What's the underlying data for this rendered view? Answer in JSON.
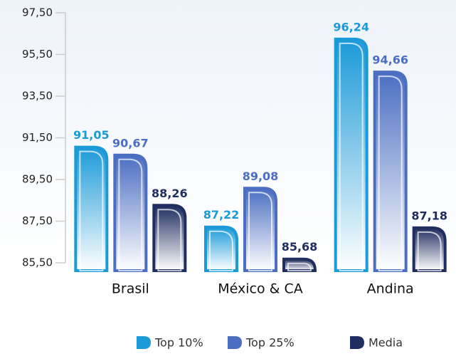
{
  "chart_data": {
    "type": "bar",
    "categories": [
      "Brasil",
      "México & CA",
      "Andina"
    ],
    "series": [
      {
        "name": "Top 10%",
        "color": "#1b9ad8",
        "values": [
          91.05,
          87.22,
          96.24
        ],
        "value_labels": [
          "91,05",
          "87,22",
          "96,24"
        ]
      },
      {
        "name": "Top 25%",
        "color": "#4b6ec2",
        "values": [
          90.67,
          89.08,
          94.66
        ],
        "value_labels": [
          "90,67",
          "89,08",
          "94,66"
        ]
      },
      {
        "name": "Media",
        "color": "#1f2d5f",
        "values": [
          88.26,
          85.68,
          87.18
        ],
        "value_labels": [
          "88,26",
          "85,68",
          "87,18"
        ]
      }
    ],
    "ylim": [
      85.5,
      97.5
    ],
    "yticks": [
      {
        "value": 85.5,
        "label": "85,50"
      },
      {
        "value": 87.5,
        "label": "87,50"
      },
      {
        "value": 89.5,
        "label": "89,50"
      },
      {
        "value": 91.5,
        "label": "91,50"
      },
      {
        "value": 93.5,
        "label": "93,50"
      },
      {
        "value": 95.5,
        "label": "95,50"
      },
      {
        "value": 97.5,
        "label": "97,50"
      }
    ],
    "legend": "bottom"
  }
}
